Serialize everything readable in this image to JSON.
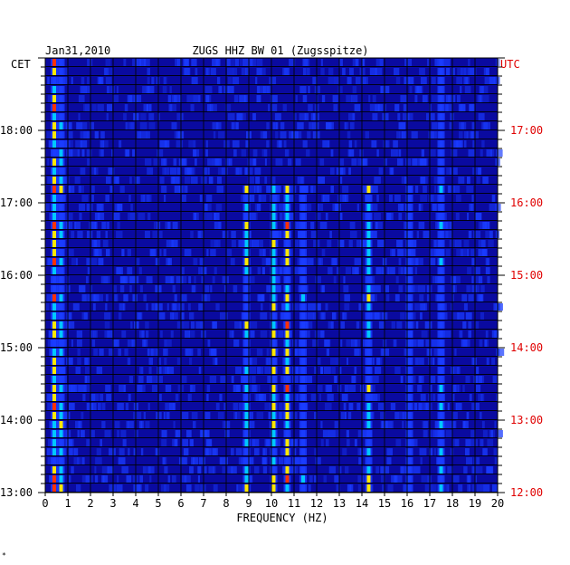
{
  "header": {
    "date": "Jan31,2010",
    "station": "ZUGS HHZ BW 01 (Zugsspitze)",
    "left_zone": "CET",
    "right_zone": "UTC",
    "corner_mark": "*"
  },
  "chart_data": {
    "type": "heatmap",
    "title": "ZUGS HHZ BW 01 (Zugsspitze)",
    "date": "Jan31,2010",
    "xlabel": "FREQUENCY (HZ)",
    "xlim": [
      0,
      20
    ],
    "x_ticks": [
      "0",
      "1",
      "2",
      "3",
      "4",
      "5",
      "6",
      "7",
      "8",
      "9",
      "10",
      "11",
      "12",
      "13",
      "14",
      "15",
      "16",
      "17",
      "18",
      "19",
      "20"
    ],
    "left_axis_label": "CET",
    "right_axis_label": "UTC",
    "y_ticks_cet": [
      "18:00",
      "17:00",
      "16:00",
      "15:00",
      "14:00",
      "13:00"
    ],
    "y_ticks_utc": [
      "17:00",
      "16:00",
      "15:00",
      "14:00",
      "13:00",
      "12:00"
    ],
    "time_range_cet": [
      "13:00",
      "19:00"
    ],
    "rows": 48,
    "colors": {
      "background": "#0a0aa0",
      "row_separator": "#000014",
      "low": "#1a3cff",
      "mid": "#00c8ff",
      "high": "#ffe800",
      "peak": "#ff3000",
      "right_axis": "#e00000"
    },
    "spectral_lines_hz": [
      {
        "hz": 0.4,
        "strength": 1.0,
        "active_from_row": 0
      },
      {
        "hz": 0.7,
        "strength": 0.7,
        "active_from_row": 0
      },
      {
        "hz": 8.9,
        "strength": 0.75,
        "active_from_row": 14
      },
      {
        "hz": 10.1,
        "strength": 0.9,
        "active_from_row": 14
      },
      {
        "hz": 10.7,
        "strength": 0.95,
        "active_from_row": 14
      },
      {
        "hz": 11.4,
        "strength": 0.5,
        "active_from_row": 14
      },
      {
        "hz": 14.3,
        "strength": 0.75,
        "active_from_row": 14
      },
      {
        "hz": 16.1,
        "strength": 0.45,
        "active_from_row": 14
      },
      {
        "hz": 17.5,
        "strength": 0.6,
        "active_from_row": 0
      }
    ]
  }
}
